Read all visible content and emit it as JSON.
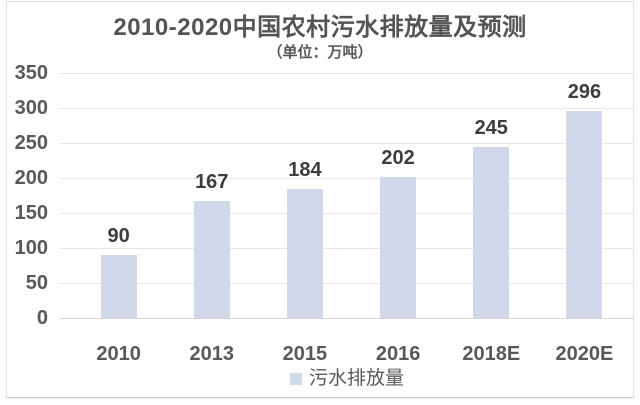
{
  "chart": {
    "title": "2010-2020中国农村污水排放量及预测",
    "subtitle": "（单位：万吨）",
    "legend_label": "污水排放量"
  },
  "chart_data": {
    "type": "bar",
    "title": "2010-2020中国农村污水排放量及预测",
    "subtitle": "（单位：万吨）",
    "unit": "万吨",
    "categories": [
      "2010",
      "2013",
      "2015",
      "2016",
      "2018E",
      "2020E"
    ],
    "values": [
      90,
      167,
      184,
      202,
      245,
      296
    ],
    "series_name": "污水排放量",
    "yticks": [
      0,
      50,
      100,
      150,
      200,
      250,
      300,
      350
    ],
    "ylim": [
      0,
      350
    ],
    "grid": true,
    "legend_position": "bottom",
    "colors": {
      "bar_fill": "#d0d8ea",
      "gridline": "#e6e6e6",
      "axis_line": "#d4d4d4",
      "axis_text": "#595959",
      "value_label_text": "#3d3d3d",
      "title_text": "#545454"
    }
  }
}
